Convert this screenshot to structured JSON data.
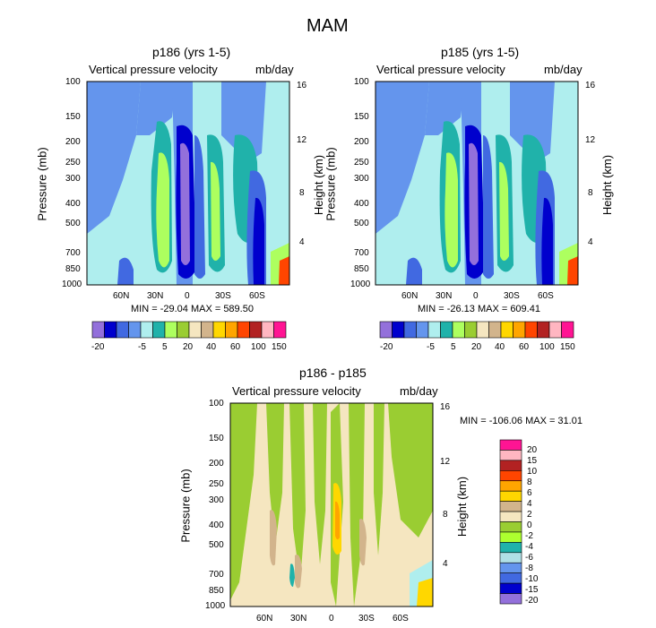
{
  "figure": {
    "title": "MAM"
  },
  "colors": {
    "palette": [
      "#9370db",
      "#0000cd",
      "#4169e1",
      "#6495ed",
      "#afeeee",
      "#20b2aa",
      "#adff5f",
      "#9acd32",
      "#f5e6c0",
      "#d2b48c",
      "#ffd700",
      "#ffa500",
      "#ff4500",
      "#b22222",
      "#ffb6c1",
      "#ff1493"
    ],
    "diff_palette": [
      "#9370db",
      "#0000cd",
      "#4169e1",
      "#6495ed",
      "#b0e0e6",
      "#20b2aa",
      "#adff2f",
      "#9acd32",
      "#f5e6c0",
      "#d2b48c",
      "#ffd700",
      "#ffa500",
      "#ff4500",
      "#b22222",
      "#ffb6c1",
      "#ff1493"
    ]
  },
  "chart_data": [
    {
      "type": "heatmap",
      "title": "p186 (yrs 1-5)",
      "left_label": "Vertical pressure velocity",
      "right_label": "mb/day",
      "ylabel": "Pressure (mb)",
      "y2label": "Height (km)",
      "yticks": [
        "100",
        "150",
        "200",
        "250",
        "300",
        "400",
        "500",
        "700",
        "850",
        "1000"
      ],
      "y2ticks": [
        "16",
        "12",
        "8",
        "4"
      ],
      "xticks": [
        "60N",
        "30N",
        "0",
        "30S",
        "60S"
      ],
      "minmax": "MIN = -29.04   MAX = 589.50",
      "colorbar_labels": [
        "-20",
        "-5",
        "5",
        "20",
        "40",
        "60",
        "100",
        "150"
      ]
    },
    {
      "type": "heatmap",
      "title": "p185 (yrs 1-5)",
      "left_label": "Vertical pressure velocity",
      "right_label": "mb/day",
      "ylabel": "Pressure (mb)",
      "y2label": "Height (km)",
      "yticks": [
        "100",
        "150",
        "200",
        "250",
        "300",
        "400",
        "500",
        "700",
        "850",
        "1000"
      ],
      "y2ticks": [
        "16",
        "12",
        "8",
        "4"
      ],
      "xticks": [
        "60N",
        "30N",
        "0",
        "30S",
        "60S"
      ],
      "minmax": "MIN = -26.13   MAX = 609.41",
      "colorbar_labels": [
        "-20",
        "-5",
        "5",
        "20",
        "40",
        "60",
        "100",
        "150"
      ]
    },
    {
      "type": "heatmap",
      "title": "p186 - p185",
      "left_label": "Vertical pressure velocity",
      "right_label": "mb/day",
      "ylabel": "Pressure (mb)",
      "y2label": "Height (km)",
      "yticks": [
        "100",
        "150",
        "200",
        "250",
        "300",
        "400",
        "500",
        "700",
        "850",
        "1000"
      ],
      "y2ticks": [
        "16",
        "12",
        "8",
        "4"
      ],
      "xticks": [
        "60N",
        "30N",
        "0",
        "30S",
        "60S"
      ],
      "minmax": "MIN = -106.06   MAX =  31.01",
      "colorbar_labels": [
        "20",
        "15",
        "10",
        "8",
        "6",
        "4",
        "2",
        "0",
        "-2",
        "-4",
        "-6",
        "-8",
        "-10",
        "-15",
        "-20"
      ]
    }
  ]
}
